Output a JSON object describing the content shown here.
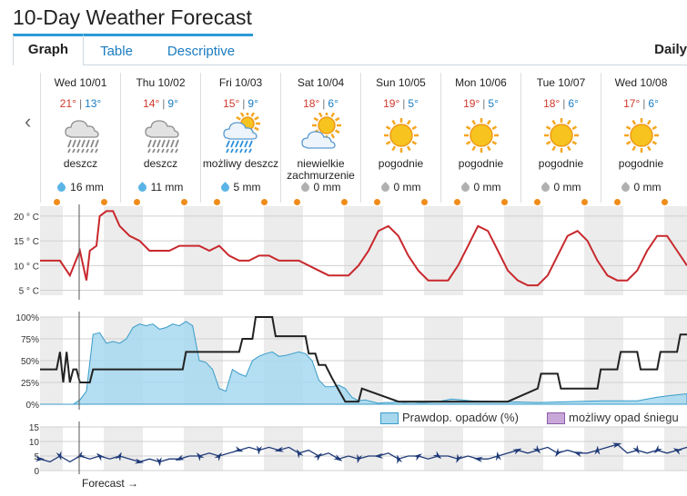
{
  "title": "10-Day Weather Forecast",
  "tabs": [
    {
      "label": "Graph",
      "active": true
    },
    {
      "label": "Table",
      "active": false
    },
    {
      "label": "Descriptive",
      "active": false
    }
  ],
  "daily_label": "Daily",
  "nav_prev_glyph": "‹",
  "days": [
    {
      "name": "Wed 10/01",
      "hi": "21°",
      "lo": "13°",
      "icon": "heavy-rain-icon",
      "condition": "deszcz",
      "precip": "16 mm",
      "drop_color": "#5ab4e6"
    },
    {
      "name": "Thu 10/02",
      "hi": "14°",
      "lo": "9°",
      "icon": "heavy-rain-icon",
      "condition": "deszcz",
      "precip": "11 mm",
      "drop_color": "#5ab4e6"
    },
    {
      "name": "Fri 10/03",
      "hi": "15°",
      "lo": "9°",
      "icon": "sun-rain-icon",
      "condition": "możliwy deszcz",
      "precip": "5 mm",
      "drop_color": "#5ab4e6"
    },
    {
      "name": "Sat 10/04",
      "hi": "18°",
      "lo": "6°",
      "icon": "partly-cloudy-icon",
      "condition": "niewielkie zachmurzenie",
      "precip": "0 mm",
      "drop_color": "#b0b0b0"
    },
    {
      "name": "Sun 10/05",
      "hi": "19°",
      "lo": "5°",
      "icon": "sun-icon",
      "condition": "pogodnie",
      "precip": "0 mm",
      "drop_color": "#b0b0b0"
    },
    {
      "name": "Mon 10/06",
      "hi": "19°",
      "lo": "5°",
      "icon": "sun-icon",
      "condition": "pogodnie",
      "precip": "0 mm",
      "drop_color": "#b0b0b0"
    },
    {
      "name": "Tue 10/07",
      "hi": "18°",
      "lo": "6°",
      "icon": "sun-icon",
      "condition": "pogodnie",
      "precip": "0 mm",
      "drop_color": "#b0b0b0"
    },
    {
      "name": "Wed 10/08",
      "hi": "17°",
      "lo": "6°",
      "icon": "sun-icon",
      "condition": "pogodnie",
      "precip": "0 mm",
      "drop_color": "#b0b0b0"
    }
  ],
  "colors": {
    "temp_line": "#c8282d",
    "precip_fill": "#a7d8ee",
    "precip_stroke": "#3a9cc9",
    "cloud_line": "#222222",
    "wind": "#1f3a78",
    "snow_fill": "#c9a6d8"
  },
  "chart_data": [
    {
      "type": "line",
      "name": "temperature",
      "y_tick_labels": [
        "20 ° C",
        "15 ° C",
        "10 ° C",
        "5 ° C"
      ],
      "y_ticks": [
        20,
        15,
        10,
        5
      ],
      "ylim": [
        4,
        22
      ],
      "x_hours": [
        0,
        6,
        9,
        12,
        14,
        15,
        17,
        18,
        20,
        22,
        24,
        27,
        30,
        33,
        36,
        39,
        42,
        45,
        48,
        51,
        54,
        57,
        60,
        63,
        66,
        69,
        72,
        75,
        78,
        81,
        84,
        87,
        90,
        93,
        96,
        99,
        102,
        105,
        108,
        111,
        114,
        117,
        120,
        123,
        126,
        129,
        132,
        135,
        138,
        141,
        144,
        147,
        150,
        153,
        156,
        159,
        162,
        165,
        168,
        171,
        174,
        177,
        180,
        183,
        186,
        189,
        192,
        195
      ],
      "values": [
        11,
        11,
        8,
        13,
        7,
        13,
        14,
        20,
        21,
        21,
        18,
        16,
        15,
        13,
        13,
        13,
        14,
        14,
        14,
        13,
        14,
        12,
        11,
        11,
        12,
        12,
        11,
        11,
        11,
        10,
        9,
        8,
        8,
        8,
        10,
        13,
        17,
        18,
        16,
        12,
        9,
        7,
        7,
        7,
        10,
        14,
        18,
        17,
        13,
        9,
        7,
        6,
        6,
        8,
        12,
        16,
        17,
        15,
        11,
        8,
        7,
        7,
        9,
        13,
        16,
        16,
        13,
        10
      ],
      "x_range_hours": [
        0,
        195
      ]
    },
    {
      "type": "area",
      "name": "cloud-and-precipitation",
      "y_tick_labels": [
        "100%",
        "75%",
        "50%",
        "25%",
        "0%"
      ],
      "y_ticks": [
        100,
        75,
        50,
        25,
        0
      ],
      "ylim": [
        0,
        100
      ],
      "x_range_hours": [
        0,
        195
      ],
      "legend": [
        "Prawdop. opadów (%)",
        "możliwy opad śniegu"
      ],
      "precip_probability": {
        "x_hours": [
          0,
          10,
          12,
          14,
          16,
          18,
          20,
          22,
          24,
          26,
          28,
          30,
          32,
          34,
          36,
          38,
          40,
          42,
          44,
          46,
          48,
          50,
          52,
          54,
          56,
          58,
          60,
          62,
          64,
          66,
          68,
          70,
          72,
          74,
          76,
          78,
          80,
          82,
          84,
          86,
          88,
          90,
          92,
          94,
          96,
          98,
          100,
          102,
          104,
          106,
          108,
          110,
          112,
          114,
          116,
          120,
          124,
          130,
          140,
          150,
          160,
          170,
          180,
          186,
          190,
          195
        ],
        "values": [
          0,
          0,
          5,
          15,
          80,
          82,
          70,
          72,
          70,
          75,
          88,
          92,
          90,
          92,
          86,
          88,
          92,
          90,
          95,
          90,
          50,
          48,
          40,
          18,
          15,
          40,
          35,
          32,
          50,
          55,
          58,
          60,
          55,
          56,
          58,
          60,
          58,
          50,
          28,
          20,
          20,
          22,
          18,
          8,
          4,
          5,
          3,
          1,
          2,
          2,
          3,
          2,
          3,
          2,
          2,
          3,
          6,
          4,
          3,
          2,
          3,
          4,
          4,
          8,
          10,
          12
        ]
      },
      "cloud_cover": {
        "x_hours": [
          0,
          5,
          6,
          7,
          8,
          9,
          10,
          11,
          12,
          15,
          16,
          30,
          31,
          43,
          44,
          55,
          56,
          60,
          61,
          64,
          65,
          70,
          71,
          80,
          81,
          83,
          84,
          86,
          88,
          92,
          93,
          96,
          97,
          108,
          109,
          120,
          121,
          130,
          131,
          140,
          141,
          150,
          151,
          156,
          157,
          168,
          169,
          174,
          175,
          180,
          181,
          186,
          187,
          192,
          193,
          195
        ],
        "values": [
          40,
          40,
          60,
          25,
          60,
          25,
          40,
          40,
          25,
          25,
          40,
          40,
          40,
          40,
          60,
          60,
          60,
          60,
          75,
          75,
          100,
          100,
          78,
          78,
          58,
          58,
          45,
          45,
          30,
          3,
          3,
          3,
          18,
          3,
          3,
          3,
          3,
          3,
          3,
          3,
          3,
          18,
          35,
          35,
          18,
          18,
          40,
          40,
          60,
          60,
          40,
          40,
          60,
          60,
          80,
          80
        ]
      }
    },
    {
      "type": "line",
      "name": "wind",
      "y_tick_labels": [
        "15",
        "10",
        "5",
        "0"
      ],
      "y_ticks": [
        15,
        10,
        5,
        0
      ],
      "ylim": [
        0,
        15
      ],
      "x_range_hours": [
        0,
        195
      ],
      "x_hours": [
        0,
        3,
        6,
        9,
        12,
        15,
        18,
        21,
        24,
        27,
        30,
        33,
        36,
        39,
        42,
        45,
        48,
        51,
        54,
        57,
        60,
        63,
        66,
        69,
        72,
        75,
        78,
        81,
        84,
        87,
        90,
        93,
        96,
        99,
        102,
        105,
        108,
        111,
        114,
        117,
        120,
        123,
        126,
        129,
        132,
        135,
        138,
        141,
        144,
        147,
        150,
        153,
        156,
        159,
        162,
        165,
        168,
        171,
        174,
        177,
        180,
        183,
        186,
        189,
        192,
        195
      ],
      "values": [
        4,
        3,
        5,
        3,
        5,
        4,
        5,
        4,
        5,
        4,
        3,
        4,
        3,
        4,
        4,
        5,
        5,
        6,
        5,
        6,
        7,
        8,
        7,
        8,
        7,
        8,
        6,
        7,
        5,
        6,
        4,
        5,
        4,
        5,
        5,
        6,
        4,
        5,
        5,
        4,
        5,
        5,
        4,
        5,
        4,
        4,
        5,
        6,
        7,
        6,
        7,
        8,
        6,
        7,
        6,
        6,
        7,
        8,
        9,
        6,
        7,
        6,
        7,
        6,
        7,
        8
      ]
    }
  ],
  "forecast_label": "Forecast →"
}
